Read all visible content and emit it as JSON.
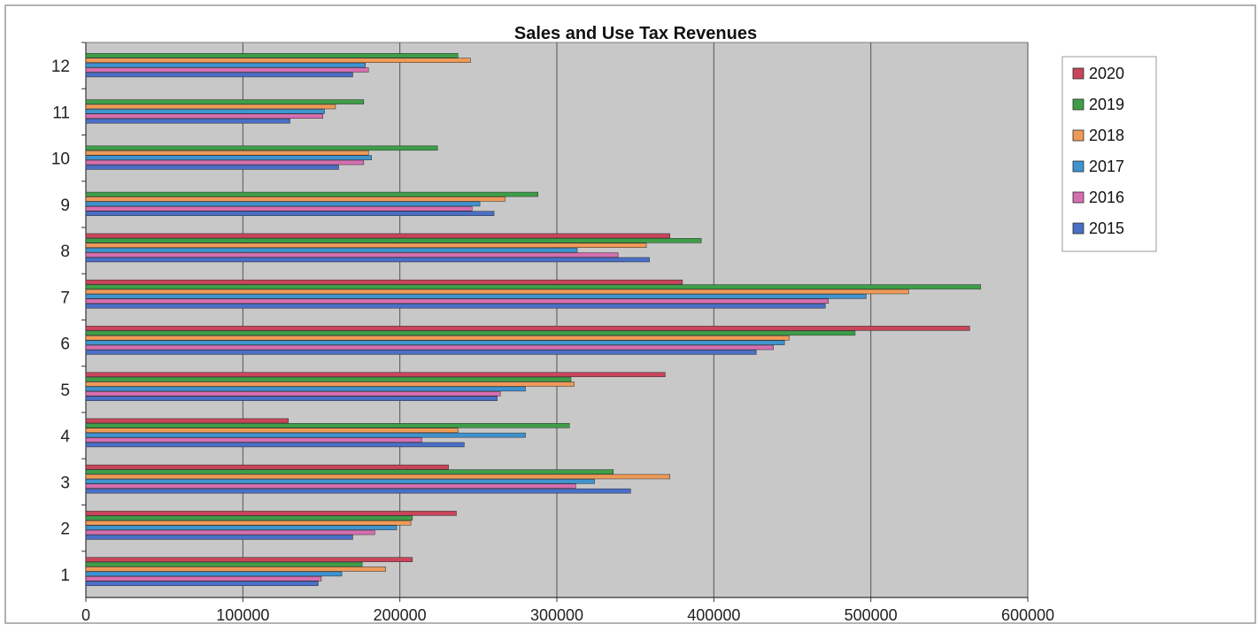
{
  "chart_data": {
    "type": "bar",
    "orientation": "horizontal",
    "title": "Sales and Use Tax Revenues",
    "xlabel": "",
    "ylabel": "",
    "xlim": [
      0,
      600000
    ],
    "x_ticks": [
      0,
      100000,
      200000,
      300000,
      400000,
      500000,
      600000
    ],
    "x_tick_labels": [
      "0",
      "100000",
      "200000",
      "300000",
      "400000",
      "500000",
      "600000"
    ],
    "categories": [
      "1",
      "2",
      "3",
      "4",
      "5",
      "6",
      "7",
      "8",
      "9",
      "10",
      "11",
      "12"
    ],
    "grid": "vertical",
    "legend_position": "right",
    "series": [
      {
        "name": "2015",
        "color": "#4a6fc6",
        "values": [
          148000,
          170000,
          347000,
          241000,
          262000,
          427000,
          471000,
          359000,
          260000,
          161000,
          130000,
          170000
        ]
      },
      {
        "name": "2016",
        "color": "#d56fb0",
        "values": [
          150000,
          184000,
          312000,
          214000,
          264000,
          438000,
          473000,
          339000,
          246000,
          177000,
          151000,
          180000
        ]
      },
      {
        "name": "2017",
        "color": "#3f93cf",
        "values": [
          163000,
          198000,
          324000,
          280000,
          280000,
          445000,
          497000,
          313000,
          251000,
          182000,
          152000,
          178000
        ]
      },
      {
        "name": "2018",
        "color": "#ee9a58",
        "values": [
          191000,
          207000,
          372000,
          237000,
          311000,
          448000,
          524000,
          357000,
          267000,
          180000,
          159000,
          245000
        ]
      },
      {
        "name": "2019",
        "color": "#3e9e48",
        "values": [
          176000,
          208000,
          336000,
          308000,
          309000,
          490000,
          570000,
          392000,
          288000,
          224000,
          177000,
          237000
        ]
      },
      {
        "name": "2020",
        "color": "#c8455a",
        "values": [
          208000,
          236000,
          231000,
          129000,
          369000,
          563000,
          380000,
          372000,
          null,
          null,
          null,
          null
        ]
      }
    ]
  }
}
